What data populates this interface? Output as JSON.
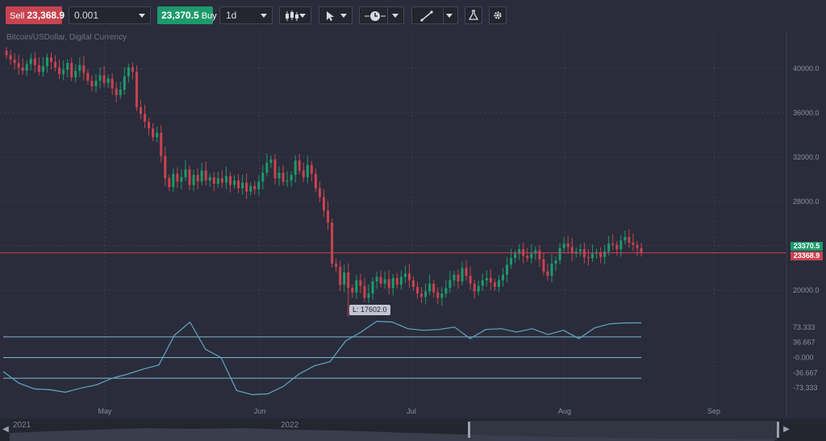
{
  "toolbar": {
    "sell_label": "Sell",
    "sell_price": "23,368.9",
    "quantity": "0.001",
    "buy_price": "23,370.5",
    "buy_label": "Buy",
    "timeframe": "1d",
    "chart_type_icon": "candlestick-icon",
    "cursor_icon": "cursor-arrow-icon",
    "clock_icon": "clock-icon",
    "draw_icon": "trendline-icon",
    "indicators_icon": "flask-icon",
    "settings_icon": "gear-icon"
  },
  "chart": {
    "symbol_label": "Bitcoin/USDollar, Digital Currency",
    "price_ticks": [
      "40000.0",
      "36000.0",
      "32000.0",
      "28000.0",
      "24000.0",
      "20000.0"
    ],
    "osc_ticks": [
      "73.333",
      "36.667",
      "-0.000",
      "-36.667",
      "-73.333"
    ],
    "month_labels": [
      "May",
      "Jun",
      "Jul",
      "Aug",
      "Sep"
    ],
    "buy_tag": "23370.5",
    "sell_tag": "23368.9",
    "low_label": "L: 17602.0",
    "colors": {
      "up": "#1d9a6c",
      "down": "#c8434f",
      "oscillator": "#5ea8c4",
      "price_line": "#c8434f"
    }
  },
  "navigator": {
    "year_labels": [
      "2021",
      "2022"
    ],
    "left_arrow": "◀",
    "right_arrow": "▶"
  },
  "chart_data": {
    "type": "candlestick",
    "series_closes": [
      41200,
      40800,
      40500,
      40100,
      39800,
      40400,
      40900,
      40300,
      39700,
      40200,
      41000,
      40600,
      40100,
      39500,
      39900,
      40500,
      39200,
      39800,
      40300,
      39600,
      38900,
      38400,
      38900,
      39400,
      38700,
      39100,
      38200,
      37600,
      38100,
      39300,
      40100,
      39700,
      36500,
      35900,
      35200,
      34600,
      33800,
      34200,
      32100,
      30100,
      29300,
      30500,
      29800,
      30200,
      30900,
      29500,
      30400,
      29800,
      30800,
      29900,
      30200,
      29600,
      30100,
      29700,
      30300,
      29500,
      29900,
      29200,
      29700,
      28900,
      29400,
      29100,
      29800,
      30600,
      31500,
      31800,
      30100,
      30600,
      29800,
      29900,
      30400,
      31700,
      30800,
      30200,
      31300,
      30500,
      29200,
      28400,
      27200,
      26100,
      22400,
      22100,
      20500,
      21600,
      20200,
      19800,
      20900,
      20400,
      19300,
      19700,
      20800,
      21200,
      20600,
      21000,
      20200,
      21100,
      20500,
      21200,
      21500,
      20900,
      20300,
      19700,
      19400,
      19900,
      20600,
      19800,
      19300,
      19700,
      20200,
      20900,
      21400,
      20800,
      22000,
      21300,
      20600,
      19900,
      20400,
      20900,
      21100,
      20700,
      20300,
      20900,
      21400,
      22300,
      22900,
      23300,
      23700,
      23100,
      22900,
      23300,
      23600,
      22800,
      21700,
      21300,
      22400,
      22700,
      23800,
      24200,
      23900,
      23300,
      23500,
      23700,
      23000,
      22900,
      23300,
      23400,
      23000,
      23500,
      24200,
      24100,
      23700,
      24500,
      24800,
      24300,
      24100,
      23800,
      23400
    ],
    "oscillator": [
      -34,
      -62,
      -76,
      -78,
      -84,
      -74,
      -66,
      -50,
      -40,
      -28,
      -18,
      54,
      86,
      20,
      0,
      -80,
      -90,
      -88,
      -70,
      -40,
      -20,
      -10,
      40,
      62,
      88,
      86,
      70,
      66,
      68,
      74,
      46,
      68,
      70,
      62,
      70,
      56,
      66,
      46,
      72,
      82,
      84,
      84
    ],
    "low": 17602.0,
    "current_bid": 23368.9,
    "current_ask": 23370.5
  }
}
